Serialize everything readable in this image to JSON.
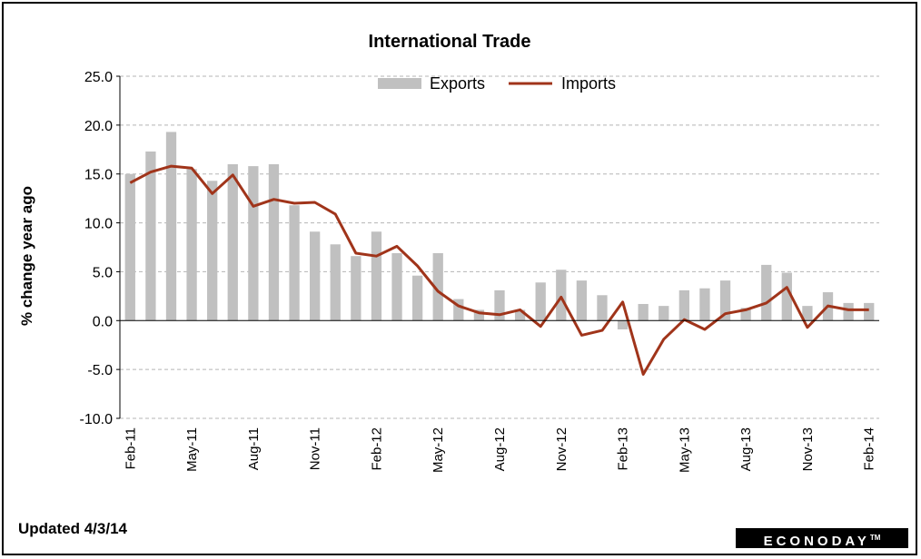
{
  "chart_data": {
    "type": "bar+line",
    "title": "International Trade",
    "ylabel": "% change year ago",
    "xlabel": "",
    "ylim": [
      -10,
      25
    ],
    "yticks": [
      "25.0",
      "20.0",
      "15.0",
      "10.0",
      "5.0",
      "0.0",
      "-5.0",
      "-10.0"
    ],
    "grid": true,
    "legend_position": "top",
    "categories": [
      "Feb-11",
      "Mar-11",
      "Apr-11",
      "May-11",
      "Jun-11",
      "Jul-11",
      "Aug-11",
      "Sep-11",
      "Oct-11",
      "Nov-11",
      "Dec-11",
      "Jan-12",
      "Feb-12",
      "Mar-12",
      "Apr-12",
      "May-12",
      "Jun-12",
      "Jul-12",
      "Aug-12",
      "Sep-12",
      "Oct-12",
      "Nov-12",
      "Dec-12",
      "Jan-13",
      "Feb-13",
      "Mar-13",
      "Apr-13",
      "May-13",
      "Jun-13",
      "Jul-13",
      "Aug-13",
      "Sep-13",
      "Oct-13",
      "Nov-13",
      "Dec-13",
      "Jan-14",
      "Feb-14"
    ],
    "x_tick_labels": [
      "Feb-11",
      "May-11",
      "Aug-11",
      "Nov-11",
      "Feb-12",
      "May-12",
      "Aug-12",
      "Nov-12",
      "Feb-13",
      "May-13",
      "Aug-13",
      "Nov-13",
      "Feb-14"
    ],
    "series": [
      {
        "name": "Exports",
        "kind": "bar",
        "color": "#c0c0c0",
        "values": [
          15.0,
          17.3,
          19.3,
          15.5,
          14.3,
          16.0,
          15.8,
          16.0,
          11.8,
          9.1,
          7.8,
          6.6,
          9.1,
          6.9,
          4.6,
          6.9,
          2.2,
          1.1,
          3.1,
          1.1,
          3.9,
          5.2,
          4.1,
          2.6,
          -0.9,
          1.7,
          1.5,
          3.1,
          3.3,
          4.1,
          1.3,
          5.7,
          4.9,
          1.5,
          2.9,
          1.8,
          1.8
        ]
      },
      {
        "name": "Imports",
        "kind": "line",
        "color": "#a0341a",
        "values": [
          14.1,
          15.2,
          15.8,
          15.6,
          13.0,
          14.9,
          11.7,
          12.4,
          12.0,
          12.1,
          10.9,
          6.9,
          6.6,
          7.6,
          5.6,
          3.0,
          1.5,
          0.8,
          0.6,
          1.1,
          -0.6,
          2.4,
          -1.5,
          -1.0,
          1.9,
          -5.5,
          -1.9,
          0.1,
          -0.9,
          0.7,
          1.1,
          1.8,
          3.4,
          -0.7,
          1.5,
          1.1,
          1.1
        ]
      }
    ]
  },
  "footer": {
    "updated": "Updated  4/3/14",
    "logo": "ECONODAY",
    "logo_tm": "TM"
  }
}
